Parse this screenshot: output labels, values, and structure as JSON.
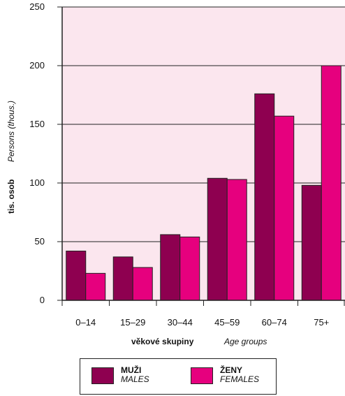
{
  "chart_data": {
    "type": "bar",
    "categories": [
      "0–14",
      "15–29",
      "30–44",
      "45–59",
      "60–74",
      "75+"
    ],
    "series": [
      {
        "name": "MUŽI / MALES",
        "color": "#8e0050",
        "values": [
          42,
          37,
          56,
          104,
          176,
          98
        ]
      },
      {
        "name": "ŽENY / FEMALES",
        "color": "#e6007e",
        "values": [
          23,
          28,
          54,
          103,
          157,
          200
        ]
      }
    ],
    "ylim": [
      0,
      250
    ],
    "yticks": [
      0,
      50,
      100,
      150,
      200,
      250
    ],
    "ylabel": {
      "main": "tis. osob",
      "sub": "Persons (thous.)"
    },
    "xlabel": {
      "main": "věkové skupiny",
      "sub": "Age groups"
    },
    "plot_background": "#fbe6ee",
    "grid": true,
    "legend": {
      "position": "bottom",
      "items": [
        {
          "main": "MUŽI",
          "sub": "MALES",
          "color": "#8e0050"
        },
        {
          "main": "ŽENY",
          "sub": "FEMALES",
          "color": "#e6007e"
        }
      ]
    }
  }
}
